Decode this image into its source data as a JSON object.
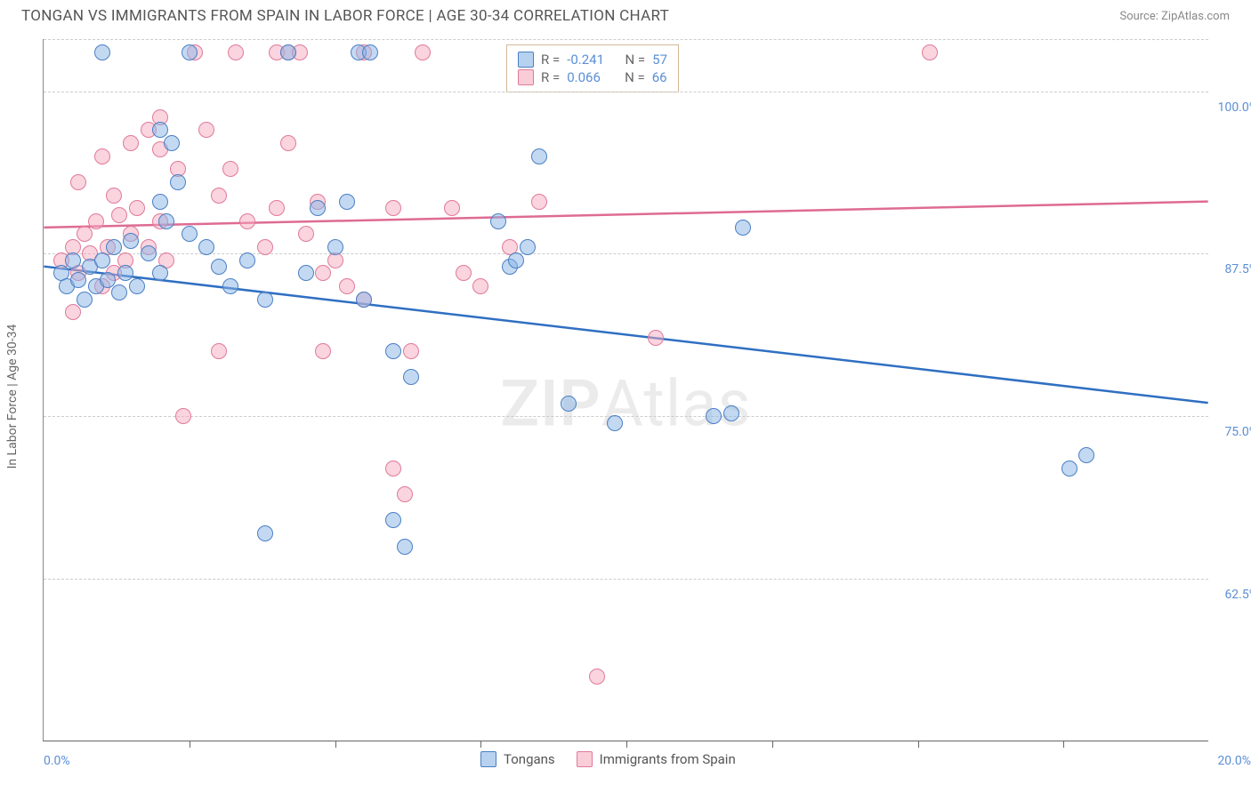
{
  "header": {
    "title": "TONGAN VS IMMIGRANTS FROM SPAIN IN LABOR FORCE | AGE 30-34 CORRELATION CHART",
    "source_prefix": "Source: ",
    "source": "ZipAtlas.com"
  },
  "axes": {
    "ylabel": "In Labor Force | Age 30-34",
    "xlim": [
      0,
      20
    ],
    "ylim": [
      50,
      104
    ],
    "yticks": [
      {
        "v": 62.5,
        "label": "62.5%"
      },
      {
        "v": 75.0,
        "label": "75.0%"
      },
      {
        "v": 87.5,
        "label": "87.5%"
      },
      {
        "v": 100.0,
        "label": "100.0%"
      }
    ],
    "xticks_minor": [
      2.5,
      5,
      7.5,
      10,
      12.5,
      15,
      17.5
    ],
    "xtick_labels": [
      {
        "v": 0,
        "label": "0.0%"
      },
      {
        "v": 20,
        "label": "20.0%"
      }
    ]
  },
  "series": {
    "blue": {
      "name": "Tongans",
      "color_fill": "rgba(135,180,230,0.5)",
      "color_stroke": "#4a7fc4",
      "trend_color": "#2f6fc2",
      "r_value": "-0.241",
      "n_value": "57",
      "trend": {
        "x1": 0,
        "y1": 86.5,
        "x2": 20,
        "y2": 76.0
      },
      "points": [
        [
          0.3,
          86
        ],
        [
          0.4,
          85
        ],
        [
          0.5,
          87
        ],
        [
          0.6,
          85.5
        ],
        [
          0.7,
          84
        ],
        [
          0.8,
          86.5
        ],
        [
          0.9,
          85
        ],
        [
          1.0,
          87
        ],
        [
          1.1,
          85.5
        ],
        [
          1.2,
          88
        ],
        [
          1.3,
          84.5
        ],
        [
          1.4,
          86
        ],
        [
          1.5,
          88.5
        ],
        [
          1.6,
          85
        ],
        [
          1.8,
          87.5
        ],
        [
          2.0,
          86
        ],
        [
          2.1,
          90
        ],
        [
          1.0,
          103
        ],
        [
          2.5,
          103
        ],
        [
          4.2,
          103
        ],
        [
          5.4,
          103
        ],
        [
          5.6,
          103
        ],
        [
          2.0,
          97
        ],
        [
          2.2,
          96
        ],
        [
          2.3,
          93
        ],
        [
          2.0,
          91.5
        ],
        [
          2.5,
          89
        ],
        [
          2.8,
          88
        ],
        [
          3.0,
          86.5
        ],
        [
          3.2,
          85
        ],
        [
          3.5,
          87
        ],
        [
          3.8,
          84
        ],
        [
          4.5,
          86
        ],
        [
          4.7,
          91
        ],
        [
          5.0,
          88
        ],
        [
          5.2,
          91.5
        ],
        [
          5.5,
          84
        ],
        [
          6.0,
          80
        ],
        [
          6.3,
          78
        ],
        [
          8.0,
          86.5
        ],
        [
          8.1,
          87
        ],
        [
          8.3,
          88
        ],
        [
          7.8,
          90
        ],
        [
          8.5,
          95
        ],
        [
          9.0,
          76
        ],
        [
          9.8,
          74.5
        ],
        [
          3.8,
          66
        ],
        [
          6.0,
          67
        ],
        [
          6.2,
          65
        ],
        [
          11.5,
          75
        ],
        [
          11.8,
          75.2
        ],
        [
          12.0,
          89.5
        ],
        [
          17.6,
          71
        ],
        [
          17.9,
          72
        ]
      ]
    },
    "pink": {
      "name": "Immigrants from Spain",
      "color_fill": "rgba(245,170,190,0.5)",
      "color_stroke": "#e07a9a",
      "trend_color": "#de6b93",
      "r_value": "0.066",
      "n_value": "66",
      "trend": {
        "x1": 0,
        "y1": 89.5,
        "x2": 20,
        "y2": 91.5
      },
      "points": [
        [
          0.3,
          87
        ],
        [
          0.5,
          88
        ],
        [
          0.6,
          86
        ],
        [
          0.7,
          89
        ],
        [
          0.8,
          87.5
        ],
        [
          0.9,
          90
        ],
        [
          1.0,
          85
        ],
        [
          1.1,
          88
        ],
        [
          1.2,
          86
        ],
        [
          1.3,
          90.5
        ],
        [
          1.4,
          87
        ],
        [
          1.5,
          89
        ],
        [
          1.6,
          91
        ],
        [
          1.8,
          88
        ],
        [
          2.0,
          90
        ],
        [
          2.1,
          87
        ],
        [
          0.6,
          93
        ],
        [
          1.0,
          95
        ],
        [
          1.2,
          92
        ],
        [
          1.5,
          96
        ],
        [
          1.8,
          97
        ],
        [
          2.0,
          95.5
        ],
        [
          2.0,
          98
        ],
        [
          2.3,
          94
        ],
        [
          0.5,
          83
        ],
        [
          2.4,
          75
        ],
        [
          2.6,
          103
        ],
        [
          3.3,
          103
        ],
        [
          4.0,
          103
        ],
        [
          4.2,
          103
        ],
        [
          4.4,
          103
        ],
        [
          5.5,
          103
        ],
        [
          6.5,
          103
        ],
        [
          15.2,
          103
        ],
        [
          2.8,
          97
        ],
        [
          3.0,
          92
        ],
        [
          3.2,
          94
        ],
        [
          3.5,
          90
        ],
        [
          3.8,
          88
        ],
        [
          4.0,
          91
        ],
        [
          4.2,
          96
        ],
        [
          4.5,
          89
        ],
        [
          4.7,
          91.5
        ],
        [
          4.8,
          86
        ],
        [
          5.0,
          87
        ],
        [
          5.2,
          85
        ],
        [
          5.5,
          84
        ],
        [
          6.0,
          91
        ],
        [
          6.3,
          80
        ],
        [
          7.0,
          91
        ],
        [
          7.2,
          86
        ],
        [
          7.5,
          85
        ],
        [
          8.0,
          88
        ],
        [
          8.5,
          91.5
        ],
        [
          6.0,
          71
        ],
        [
          6.2,
          69
        ],
        [
          10.5,
          81
        ],
        [
          9.5,
          55
        ],
        [
          3.0,
          80
        ],
        [
          4.8,
          80
        ]
      ]
    }
  },
  "legend_box": {
    "r_label": "R =",
    "n_label": "N ="
  },
  "watermark": {
    "zip": "ZIP",
    "rest": "Atlas"
  },
  "colors": {
    "grid": "#cccccc",
    "axis": "#888888",
    "tick_label": "#5b8fd6",
    "text": "#555555"
  }
}
